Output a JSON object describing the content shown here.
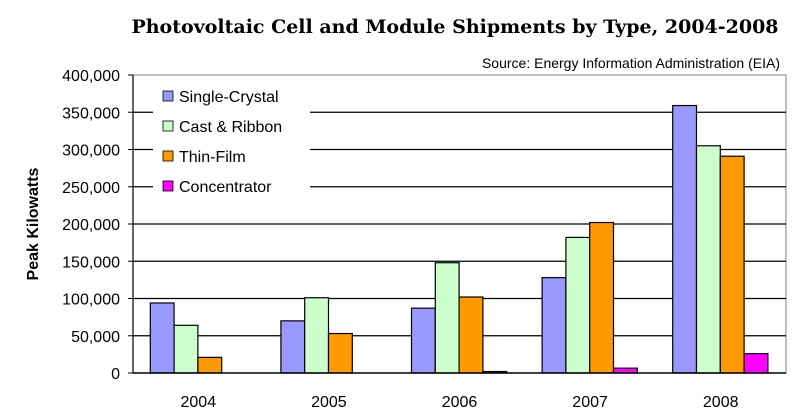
{
  "chart_data": {
    "type": "bar",
    "title": "Photovoltaic Cell and Module Shipments by Type, 2004-2008",
    "subtitle": "Source: Energy Information Administration (EIA)",
    "xlabel": "",
    "ylabel": "Peak Kilowatts",
    "ylim": [
      0,
      400000
    ],
    "yticks": [
      0,
      50000,
      100000,
      150000,
      200000,
      250000,
      300000,
      350000,
      400000
    ],
    "ytick_labels": [
      "0",
      "50,000",
      "100,000",
      "150,000",
      "200,000",
      "250,000",
      "300,000",
      "350,000",
      "400,000"
    ],
    "grid": true,
    "legend_position": "top-left",
    "categories": [
      "2004",
      "2005",
      "2006",
      "2007",
      "2008"
    ],
    "series": [
      {
        "name": "Single-Crystal",
        "color": "#9999FF",
        "values": [
          94000,
          70000,
          87000,
          128000,
          359000
        ]
      },
      {
        "name": "Cast & Ribbon",
        "color": "#CCFFCC",
        "values": [
          64000,
          101000,
          148000,
          182000,
          305000
        ]
      },
      {
        "name": "Thin-Film",
        "color": "#FF9900",
        "values": [
          21000,
          53000,
          102000,
          202000,
          291000
        ]
      },
      {
        "name": "Concentrator",
        "color": "#FF00FF",
        "values": [
          0,
          0,
          2000,
          6500,
          26000
        ]
      }
    ]
  }
}
